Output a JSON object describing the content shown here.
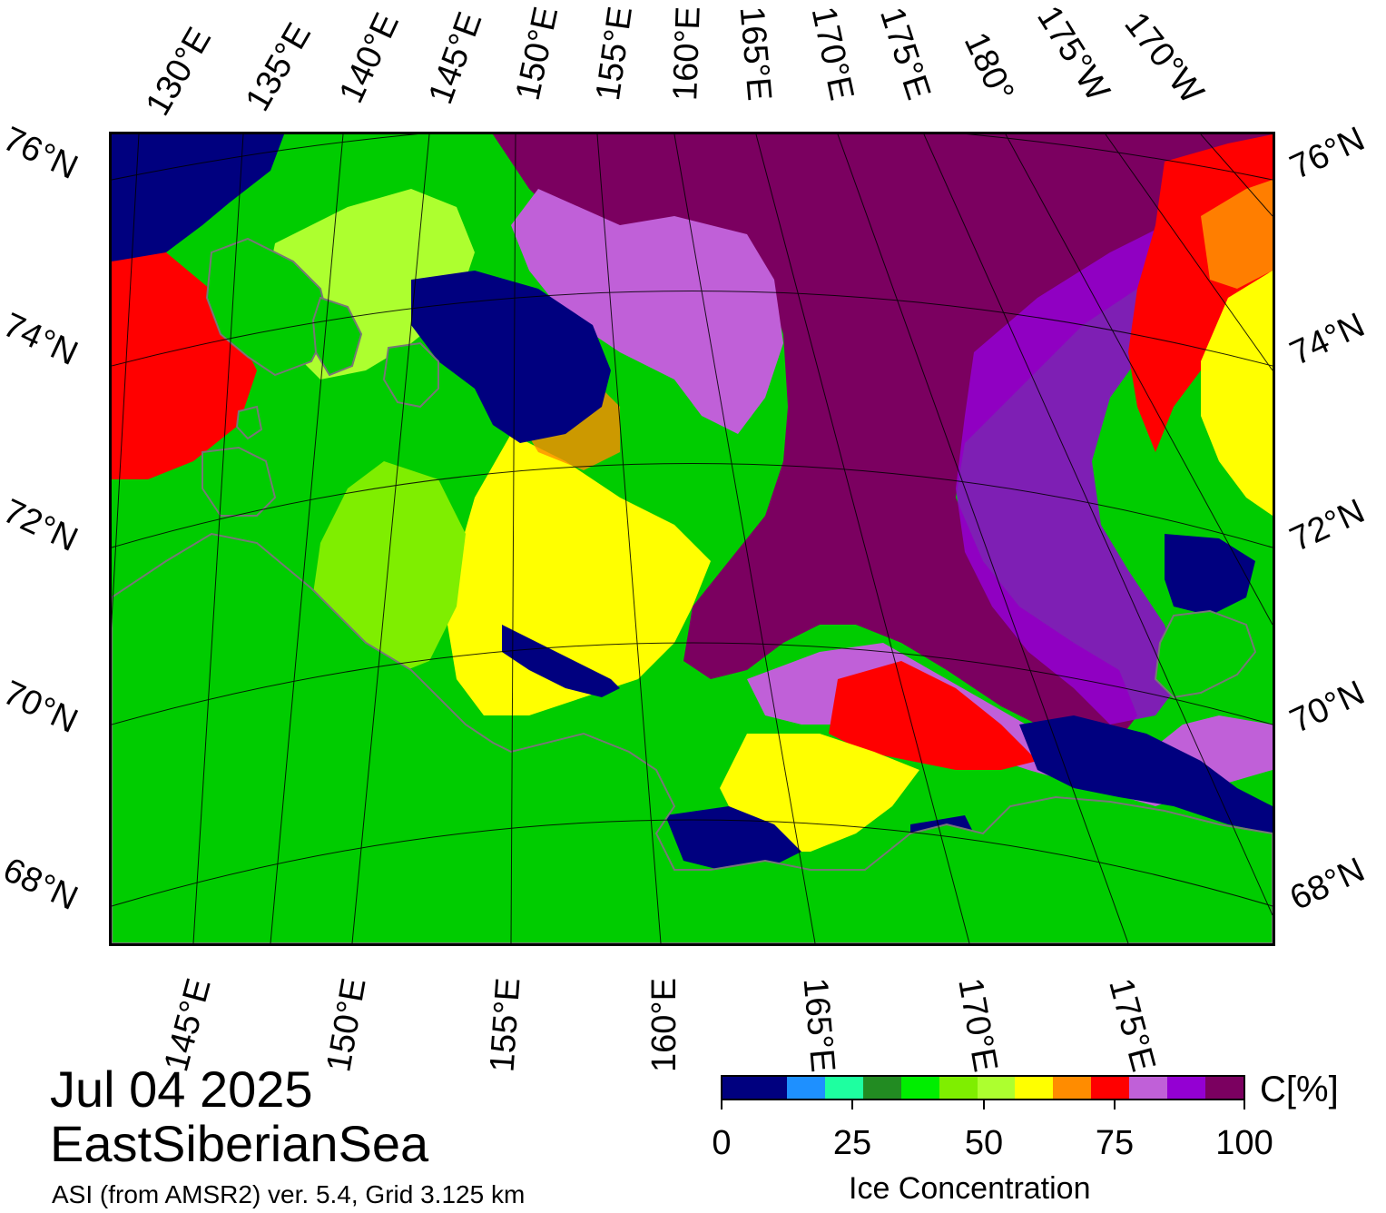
{
  "map": {
    "type": "sea-ice-concentration-map",
    "region": "EastSiberianSea",
    "date": "Jul 04 2025",
    "source": "ASI (from AMSR2) ver. 5.4,  Grid 3.125 km",
    "projection": "polar stereographic",
    "land_color": "#00cc00",
    "coast_color": "#777777",
    "graticule_color": "#000000",
    "top_labels": [
      "130°E",
      "135°E",
      "140°E",
      "145°E",
      "150°E",
      "155°E",
      "160°E",
      "165°E",
      "170°E",
      "175°E",
      "180°",
      "175°W",
      "170°W"
    ],
    "bottom_labels": [
      "145°E",
      "150°E",
      "155°E",
      "160°E",
      "165°E",
      "170°E",
      "175°E"
    ],
    "left_labels": [
      "76°N",
      "74°N",
      "72°N",
      "70°N",
      "68°N"
    ],
    "right_labels": [
      "76°N",
      "74°N",
      "72°N",
      "70°N",
      "68°N"
    ]
  },
  "colorbar": {
    "title": "Ice Concentration",
    "unit": "C[%]",
    "ticks": [
      "0",
      "25",
      "50",
      "75",
      "100"
    ],
    "range": [
      0,
      100
    ],
    "colors": [
      "#00007f",
      "#1e90ff",
      "#1effa0",
      "#228b22",
      "#00ee00",
      "#7fee00",
      "#adff2f",
      "#ffff00",
      "#ff8c00",
      "#ff0000",
      "#c060d8",
      "#9400d3",
      "#7b0060"
    ]
  }
}
